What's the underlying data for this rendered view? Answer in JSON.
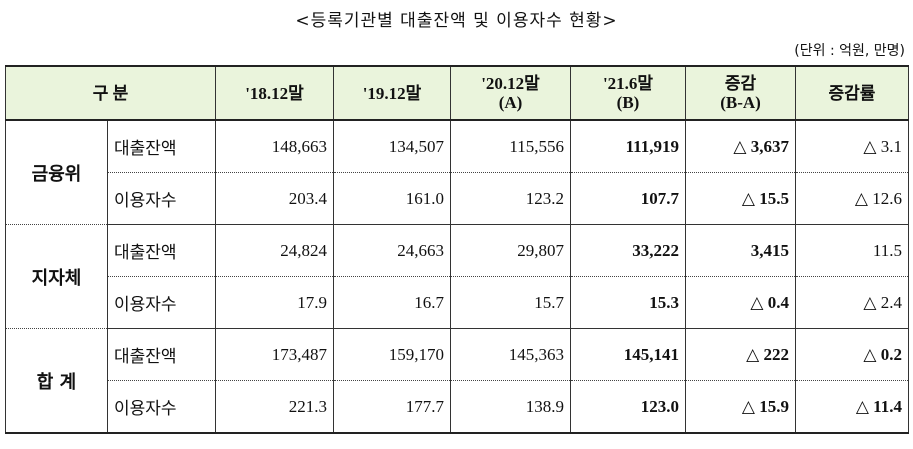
{
  "title": "<등록기관별 대출잔액 및 이용자수 현황>",
  "unit": "(단위 : 억원, 만명)",
  "table": {
    "header": [
      "구  분",
      "'18.12말",
      "'19.12말",
      "'20.12말\n(A)",
      "'21.6말\n(B)",
      "증감\n(B-A)",
      "증감률"
    ],
    "groups": [
      {
        "label": "금융위",
        "rows": [
          {
            "label": "대출잔액",
            "cells": [
              "148,663",
              "134,507",
              "115,556",
              "111,919",
              "△ 3,637",
              "△ 3.1"
            ]
          },
          {
            "label": "이용자수",
            "cells": [
              "203.4",
              "161.0",
              "123.2",
              "107.7",
              "△ 15.5",
              "△ 12.6"
            ]
          }
        ]
      },
      {
        "label": "지자체",
        "rows": [
          {
            "label": "대출잔액",
            "cells": [
              "24,824",
              "24,663",
              "29,807",
              "33,222",
              "3,415",
              "11.5"
            ]
          },
          {
            "label": "이용자수",
            "cells": [
              "17.9",
              "16.7",
              "15.7",
              "15.3",
              "△ 0.4",
              "△ 2.4"
            ]
          }
        ]
      },
      {
        "label": "합  계",
        "rows": [
          {
            "label": "대출잔액",
            "cells": [
              "173,487",
              "159,170",
              "145,363",
              "145,141",
              "△ 222",
              "△ 0.2"
            ]
          },
          {
            "label": "이용자수",
            "cells": [
              "221.3",
              "177.7",
              "138.9",
              "123.0",
              "△ 15.9",
              "△ 11.4"
            ]
          }
        ]
      }
    ]
  }
}
